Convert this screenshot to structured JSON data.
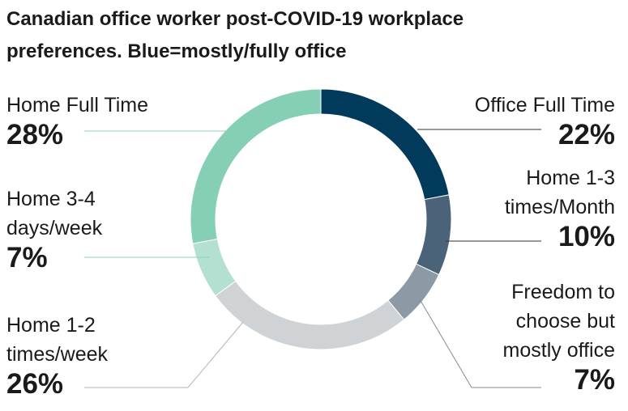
{
  "chart_data": {
    "type": "pie",
    "title": "Canadian office worker post-COVID-19 workplace preferences. Blue=mostly/fully office",
    "slices": [
      {
        "label": "Office Full Time",
        "value": 22,
        "value_label": "22%",
        "color": "#023a5b"
      },
      {
        "label": "Home 1-3 times/Month",
        "value": 10,
        "value_label": "10%",
        "color": "#4b6378"
      },
      {
        "label": "Freedom to choose but mostly office",
        "value": 7,
        "value_label": "7%",
        "color": "#8d9aa5"
      },
      {
        "label": "Home 1-2 times/week",
        "value": 26,
        "value_label": "26%",
        "color": "#cfd3d6"
      },
      {
        "label": "Home 3-4 days/week",
        "value": 7,
        "value_label": "7%",
        "color": "#b4e0d2"
      },
      {
        "label": "Home Full Time",
        "value": 28,
        "value_label": "28%",
        "color": "#85cfb5"
      }
    ]
  },
  "labels": {
    "office_full_time": {
      "lines": [
        "Office Full Time"
      ],
      "pct": "22%"
    },
    "home_1_3_month": {
      "lines": [
        "Home 1-3",
        "times/Month"
      ],
      "pct": "10%"
    },
    "freedom": {
      "lines": [
        "Freedom to",
        "choose but",
        "mostly office"
      ],
      "pct": "7%"
    },
    "home_1_2_week": {
      "lines": [
        "Home 1-2",
        "times/week"
      ],
      "pct": "26%"
    },
    "home_3_4_week": {
      "lines": [
        "Home 3-4",
        "days/week"
      ],
      "pct": "7%"
    },
    "home_full_time": {
      "lines": [
        "Home Full Time"
      ],
      "pct": "28%"
    }
  }
}
